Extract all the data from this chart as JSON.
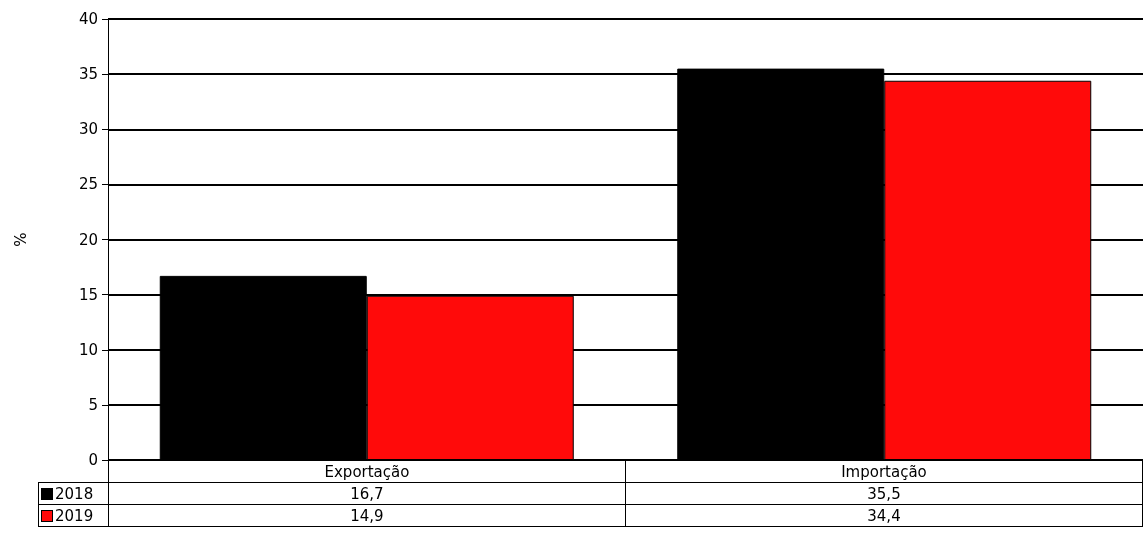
{
  "chart_data": {
    "type": "bar",
    "ylabel": "%",
    "categories": [
      "Exportação",
      "Importação"
    ],
    "series": [
      {
        "name": "2018",
        "color": "#000000",
        "values": [
          16.7,
          35.5
        ],
        "value_labels": [
          "16,7",
          "35,5"
        ]
      },
      {
        "name": "2019",
        "color": "#ff0a0a",
        "values": [
          14.9,
          34.4
        ],
        "value_labels": [
          "14,9",
          "34,4"
        ]
      }
    ],
    "ylim": [
      0,
      40
    ],
    "yticks": [
      0,
      5,
      10,
      15,
      20,
      25,
      30,
      35,
      40
    ],
    "grid": "y",
    "legend": "bottom"
  }
}
